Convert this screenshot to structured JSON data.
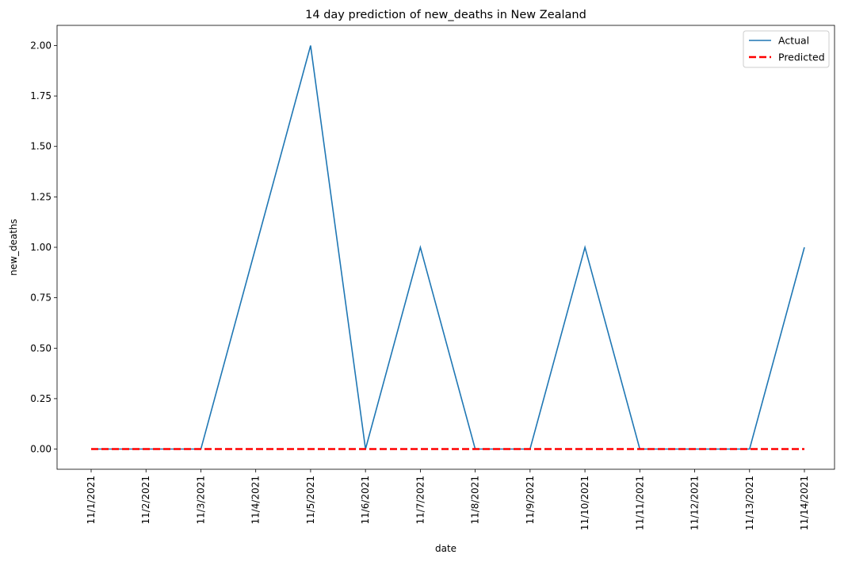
{
  "chart_data": {
    "type": "line",
    "title": "14 day prediction of new_deaths in New Zealand",
    "xlabel": "date",
    "ylabel": "new_deaths",
    "categories": [
      "11/1/2021",
      "11/2/2021",
      "11/3/2021",
      "11/4/2021",
      "11/5/2021",
      "11/6/2021",
      "11/7/2021",
      "11/8/2021",
      "11/9/2021",
      "11/10/2021",
      "11/11/2021",
      "11/12/2021",
      "11/13/2021",
      "11/14/2021"
    ],
    "series": [
      {
        "name": "Actual",
        "color": "#1f77b4",
        "style": "solid",
        "values": [
          0,
          0,
          0,
          1,
          2,
          0,
          1,
          0,
          0,
          1,
          0,
          0,
          0,
          1
        ]
      },
      {
        "name": "Predicted",
        "color": "#ff0000",
        "style": "dashed",
        "values": [
          0,
          0,
          0,
          0,
          0,
          0,
          0,
          0,
          0,
          0,
          0,
          0,
          0,
          0
        ]
      }
    ],
    "yticks": [
      0.0,
      0.25,
      0.5,
      0.75,
      1.0,
      1.25,
      1.5,
      1.75,
      2.0
    ],
    "ytick_labels": [
      "0.00",
      "0.25",
      "0.50",
      "0.75",
      "1.00",
      "1.25",
      "1.50",
      "1.75",
      "2.00"
    ],
    "ylim": [
      -0.1,
      2.1
    ],
    "grid": false,
    "legend_position": "top-right"
  }
}
